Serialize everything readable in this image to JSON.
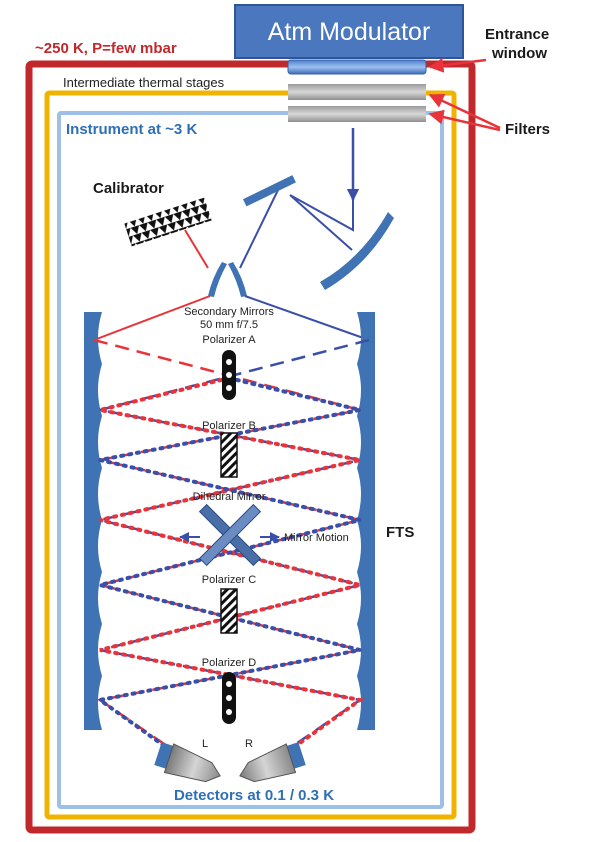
{
  "modulator": {
    "title": "Atm Modulator"
  },
  "outer_stage": {
    "label": "~250 K, P=few mbar",
    "color": "#c0282b"
  },
  "intermediate_stage": {
    "label": "Intermediate thermal stages",
    "color": "#f0b400"
  },
  "instrument": {
    "label": "Instrument at ~3 K",
    "color": "#9fc0e6"
  },
  "callouts": {
    "entrance": [
      "Entrance",
      "window"
    ],
    "filters": "Filters"
  },
  "calibrator": {
    "label": "Calibrator"
  },
  "secondary": {
    "line1": "Secondary Mirrors",
    "line2": "50 mm   f/7.5",
    "line3": "Polarizer A"
  },
  "polarizers": {
    "b": "Polarizer B",
    "c": "Polarizer C",
    "d": "Polarizer D"
  },
  "dihedral": {
    "label": "Dihedral Mirror",
    "motion": "Mirror Motion"
  },
  "fts": {
    "label": "FTS"
  },
  "detectors": {
    "left": "L",
    "right": "R",
    "label": "Detectors at 0.1 / 0.3 K"
  },
  "colors": {
    "beam_red": "#e8333a",
    "beam_blue": "#3a4fa8",
    "mirror": "#3f73b3",
    "label_blue": "#2f6fb5"
  }
}
